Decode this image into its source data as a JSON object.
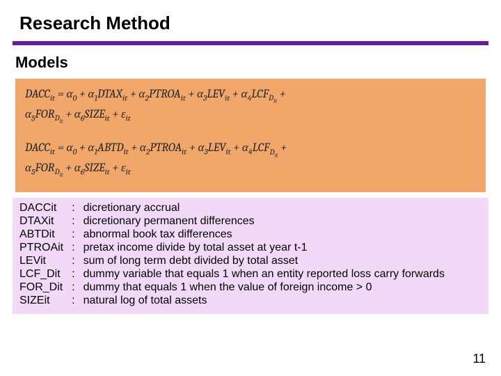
{
  "colors": {
    "title_rule": "#6a1b9a",
    "models_bg": "#f1a66a",
    "defs_bg": "#f2d9f7",
    "text": "#000000",
    "eq_text": "#262626"
  },
  "fontsizes": {
    "title": 26,
    "subhead": 22,
    "equation": 17,
    "defs": 16,
    "pagenum": 18
  },
  "title": "Research Method",
  "subhead": "Models",
  "equations": {
    "eq1_line1": "DACCit = α0 + α1DTAXit + α2PTROAit + α3LEVit + α4LCFDit +",
    "eq1_line2": "α5FORDit + α6SIZEit + εit",
    "eq2_line1": "DACCit = α0 + α1ABTDit + α2PTROAit + α3LEVit + α4LCFDit +",
    "eq2_line2": "α5FORDit + α6SIZEit + εit"
  },
  "defs": [
    {
      "sym": "DACCit",
      "desc": "dicretionary accrual"
    },
    {
      "sym": "DTAXit",
      "desc": "dicretionary permanent differences"
    },
    {
      "sym": "ABTDit",
      "desc": "abnormal book tax differences"
    },
    {
      "sym": "PTROAit",
      "desc": "pretax income divide by total asset at year t-1"
    },
    {
      "sym": "LEVit",
      "desc": "sum of long term debt divided by total asset"
    },
    {
      "sym": "LCF_Dit",
      "desc": "dummy variable that equals 1 when an entity reported loss carry forwards"
    },
    {
      "sym": "FOR_Dit",
      "desc": "dummy that equals 1 when the value of foreign income > 0"
    },
    {
      "sym": "SIZEit",
      "desc": "natural log of total assets"
    }
  ],
  "pagenum": "11",
  "colon": ":"
}
